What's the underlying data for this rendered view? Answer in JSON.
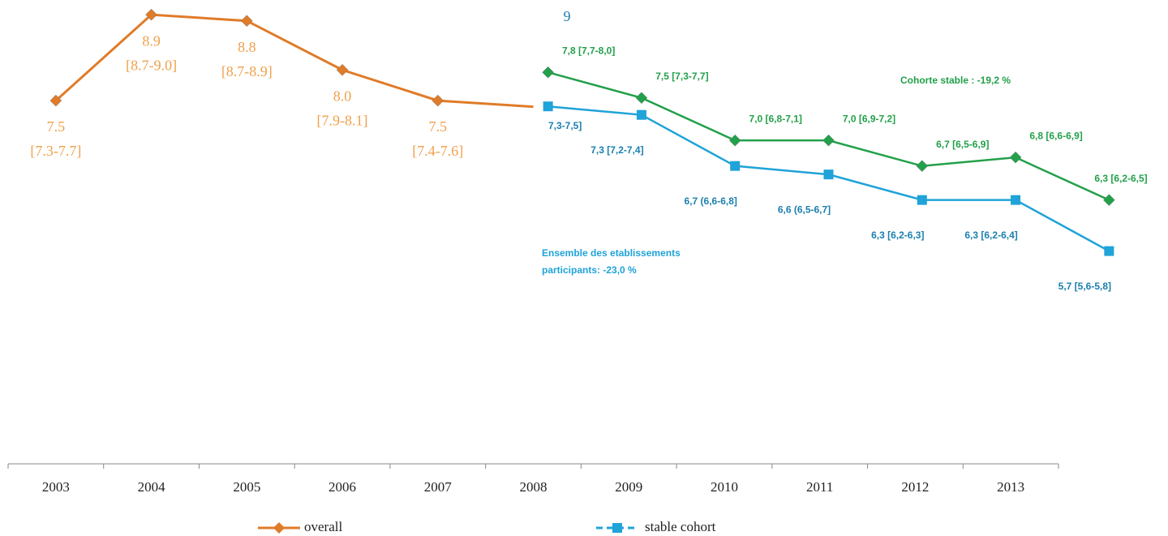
{
  "chart_data": [
    {
      "type": "line",
      "categories": [
        "2003",
        "2004",
        "2005",
        "2006",
        "2007",
        "2008",
        "2009",
        "2010",
        "2011",
        "2012",
        "2013"
      ],
      "series": [
        {
          "name": "overall",
          "color": "#e07b28",
          "values": [
            7.5,
            8.9,
            8.8,
            8.0,
            7.5,
            7.4,
            null,
            null,
            null,
            null,
            null
          ],
          "value_labels": [
            "7.5",
            "8.9",
            "8.8",
            "8.0",
            "7.5",
            null,
            null,
            null,
            null,
            null,
            null
          ],
          "interval_labels": [
            "[7.3-7.7]",
            "[8.7-9.0]",
            "[8.7-8.9]",
            "[7.9-8.1]",
            "[7.4-7.6]",
            null,
            null,
            null,
            null,
            null,
            null
          ]
        }
      ],
      "legend": [
        {
          "name": "overall",
          "color": "#e07b28",
          "marker": "diamond"
        },
        {
          "name": "stable cohort",
          "color": "#1fa3d8",
          "marker": "square"
        }
      ],
      "annotations": [
        "9"
      ],
      "ylim": [
        1.58,
        9.14
      ]
    },
    {
      "type": "line",
      "categories": [
        null,
        null,
        null,
        null,
        null,
        null,
        null
      ],
      "series": [
        {
          "name": "Cohorte stable",
          "color": "#22a04a",
          "marker": "diamond",
          "values": [
            7.8,
            7.5,
            7.0,
            7.0,
            6.7,
            6.8,
            6.3
          ],
          "value_labels": [
            "7,8 [7,7-8,0]",
            "7,5 [7,3-7,7]",
            "7,0 [6,8-7,1]",
            "7,0 [6,9-7,2]",
            "6,7 [6,5-6,9]",
            "6,8 [6,6-6,9]",
            "6,3 [6,2-6,5]"
          ]
        },
        {
          "name": "Ensemble des etablissements participants",
          "color": "#1fa3d8",
          "marker": "square",
          "values": [
            7.4,
            7.3,
            6.7,
            6.6,
            6.3,
            6.3,
            5.7
          ],
          "value_labels": [
            null,
            "7,3 [7,2-7,4]",
            "6,7 (6,6-6,8]",
            "6,6 (6,5-6,7]",
            "6,3 [6,2-6,3]",
            "6,3 [6,2-6,4]",
            "5,7 [5,6-5,8]"
          ]
        }
      ],
      "annotations": [
        "Cohorte stable : -19,2 %",
        "Ensemble des etablissements",
        "participants: -23,0 %",
        "7,3-7,5]"
      ],
      "ylim": [
        3.2,
        8.65
      ]
    }
  ]
}
